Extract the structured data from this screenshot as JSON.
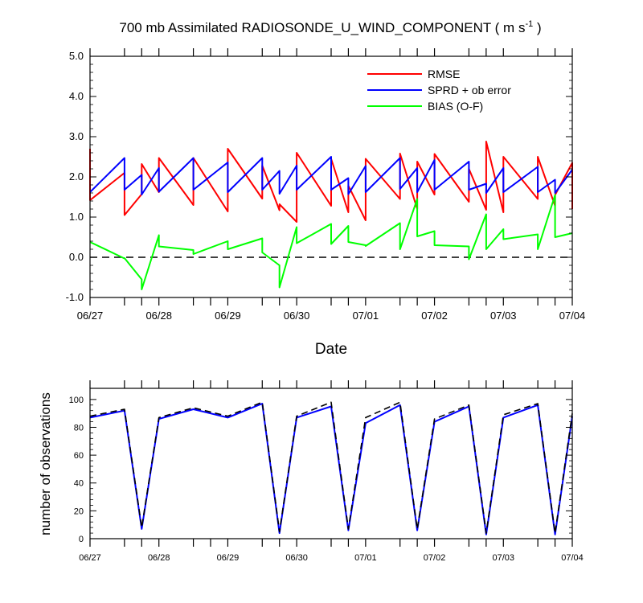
{
  "chart_data": [
    {
      "type": "line",
      "title": "700 mb Assimilated RADIOSONDE_U_WIND_COMPONENT ( m s",
      "title_sup": "-1",
      "title_end": " )",
      "xlabel": "Date",
      "ylabel": "",
      "ylim": [
        -1.0,
        5.0
      ],
      "yticks": [
        "-1.0",
        "0.0",
        "1.0",
        "2.0",
        "3.0",
        "4.0",
        "5.0"
      ],
      "xlim": [
        0,
        7
      ],
      "xtick_labels": [
        "06/27",
        "06/28",
        "06/29",
        "06/30",
        "07/01",
        "07/02",
        "07/03",
        "07/04"
      ],
      "reference_line": {
        "y": 0.0,
        "style": "dashed",
        "color": "#000000"
      },
      "legend_position": "top-right",
      "grid": false,
      "series": [
        {
          "name": "RMSE",
          "color": "#ff0000",
          "x": [
            0,
            0,
            0.5,
            0.5,
            0.75,
            0.75,
            1,
            1,
            1.5,
            1.5,
            2,
            2,
            2.5,
            2.5,
            2.75,
            2.75,
            3,
            3,
            3.5,
            3.5,
            3.75,
            3.75,
            4,
            4,
            4.5,
            4.5,
            4.75,
            4.75,
            5,
            5,
            5.5,
            5.5,
            5.75,
            5.75,
            6,
            6,
            6.5,
            6.5,
            6.75,
            6.75,
            7,
            7
          ],
          "y": [
            2.7,
            1.42,
            2.1,
            1.05,
            1.57,
            2.32,
            1.62,
            2.47,
            1.3,
            2.47,
            1.14,
            2.7,
            1.46,
            2.28,
            1.17,
            1.32,
            0.88,
            2.6,
            1.28,
            2.45,
            1.12,
            1.78,
            0.92,
            2.45,
            1.45,
            2.58,
            1.2,
            2.38,
            1.56,
            2.57,
            1.38,
            2.2,
            1.18,
            2.88,
            1.12,
            2.5,
            1.45,
            2.5,
            1.28,
            1.55,
            2.35,
            1.2
          ]
        },
        {
          "name": "SPRD + ob error",
          "color": "#0000ff",
          "x": [
            0,
            0.5,
            0.5,
            0.75,
            0.75,
            1,
            1,
            1.5,
            1.5,
            2,
            2,
            2.5,
            2.5,
            2.75,
            2.75,
            3,
            3,
            3.5,
            3.5,
            3.75,
            3.75,
            4,
            4,
            4.5,
            4.5,
            4.75,
            4.75,
            5,
            5,
            5.5,
            5.5,
            5.75,
            5.75,
            6,
            6,
            6.5,
            6.5,
            6.75,
            6.75,
            7
          ],
          "y": [
            1.62,
            2.47,
            1.68,
            2.05,
            1.56,
            2.22,
            1.63,
            2.47,
            1.68,
            2.36,
            1.62,
            2.47,
            1.68,
            2.15,
            1.58,
            2.28,
            1.68,
            2.5,
            1.68,
            1.97,
            1.57,
            2.27,
            1.62,
            2.47,
            1.7,
            2.22,
            1.62,
            2.42,
            1.68,
            2.38,
            1.68,
            1.83,
            1.6,
            2.22,
            1.62,
            2.25,
            1.62,
            1.93,
            1.6,
            2.18
          ]
        },
        {
          "name": "BIAS (O-F)",
          "color": "#00ff00",
          "x": [
            0,
            0.5,
            0.5,
            0.75,
            0.75,
            1,
            1,
            1.5,
            1.5,
            2,
            2,
            2.5,
            2.5,
            2.75,
            2.75,
            3,
            3,
            3.5,
            3.5,
            3.75,
            3.75,
            4,
            4,
            4.5,
            4.5,
            4.75,
            4.75,
            5,
            5,
            5.5,
            5.5,
            5.75,
            5.75,
            6,
            6,
            6.5,
            6.5,
            6.75,
            6.75,
            7
          ],
          "y": [
            0.38,
            -0.03,
            -0.02,
            -0.55,
            -0.8,
            0.55,
            0.27,
            0.18,
            0.08,
            0.4,
            0.2,
            0.47,
            0.12,
            -0.2,
            -0.75,
            0.75,
            0.35,
            0.83,
            0.33,
            0.78,
            0.38,
            0.3,
            0.28,
            0.85,
            0.2,
            1.45,
            0.52,
            0.65,
            0.3,
            0.27,
            -0.05,
            1.07,
            0.2,
            0.7,
            0.45,
            0.57,
            0.2,
            1.55,
            0.5,
            0.6
          ]
        }
      ]
    },
    {
      "type": "line",
      "title": "",
      "xlabel": "",
      "ylabel": "number of observations",
      "ylim": [
        0,
        108
      ],
      "yticks": [
        "0",
        "20",
        "40",
        "60",
        "80",
        "100"
      ],
      "xlim": [
        0,
        7
      ],
      "xtick_labels": [
        "06/27",
        "06/28",
        "06/29",
        "06/30",
        "07/01",
        "07/02",
        "07/03",
        "07/04"
      ],
      "grid": false,
      "series": [
        {
          "color": "#0000ff",
          "style": "solid",
          "x": [
            0,
            0.5,
            0.75,
            1,
            1.5,
            2,
            2.5,
            2.75,
            3,
            3.5,
            3.75,
            4,
            4.5,
            4.75,
            5,
            5.5,
            5.75,
            6,
            6.5,
            6.75,
            7
          ],
          "y": [
            87,
            92,
            7,
            86,
            93,
            87,
            97,
            4,
            87,
            95,
            6,
            83,
            96,
            6,
            84,
            95,
            3,
            87,
            96,
            3,
            88
          ]
        },
        {
          "color": "#000000",
          "style": "dashed",
          "x": [
            0,
            0.5,
            0.75,
            1,
            1.5,
            2,
            2.5,
            2.75,
            3,
            3.5,
            3.75,
            4,
            4.5,
            4.75,
            5,
            5.5,
            5.75,
            6,
            6.5,
            6.75,
            7
          ],
          "y": [
            88,
            93,
            8,
            87,
            94,
            88,
            98,
            5,
            88,
            98,
            7,
            87,
            98,
            7,
            86,
            96,
            4,
            89,
            97,
            4,
            90
          ]
        }
      ]
    }
  ]
}
